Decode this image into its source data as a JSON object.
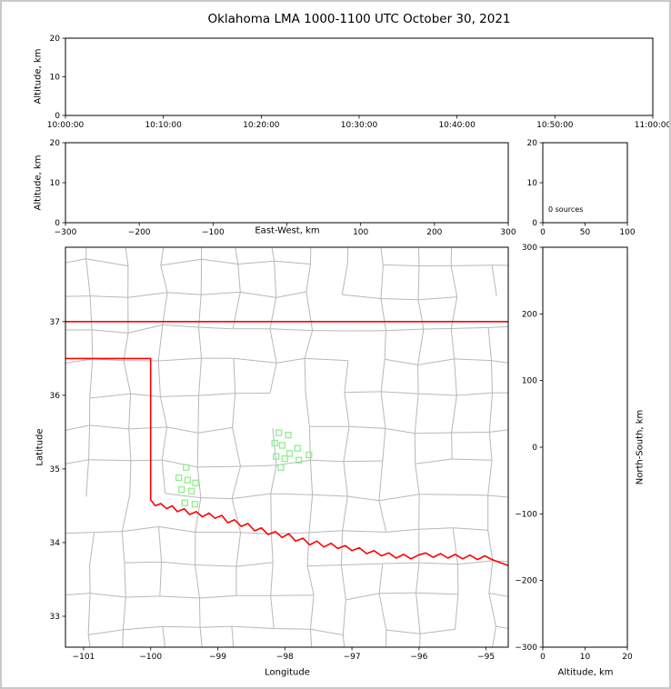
{
  "figure": {
    "title": "Oklahoma LMA 1000-1100 UTC October 30, 2021"
  },
  "colors": {
    "background": "#ffffff",
    "frame_border": "#c9c9c9",
    "axis": "#000000",
    "county_lines": "#b8b8b8",
    "state_border": "#ff0000",
    "station_marker": "#90ee90"
  },
  "chart_data": [
    {
      "id": "time_height",
      "type": "scatter",
      "ylabel": "Altitude, km",
      "xlim": [
        0,
        3600
      ],
      "ylim": [
        0,
        20
      ],
      "xticks": {
        "pos": [
          0,
          600,
          1200,
          1800,
          2400,
          3000,
          3600
        ],
        "labels": [
          "10:00:00",
          "10:10:00",
          "10:20:00",
          "10:30:00",
          "10:40:00",
          "10:50:00",
          "11:00:00"
        ]
      },
      "yticks": {
        "pos": [
          0,
          10,
          20
        ],
        "labels": [
          "0",
          "10",
          "20"
        ]
      },
      "points": []
    },
    {
      "id": "ew_height",
      "type": "scatter",
      "xlabel": "East-West, km",
      "ylabel": "Altitude, km",
      "xlim": [
        -300,
        300
      ],
      "ylim": [
        0,
        20
      ],
      "xticks": {
        "pos": [
          -300,
          -200,
          -100,
          0,
          100,
          200,
          300
        ],
        "labels": [
          "−300",
          "−200",
          "−100",
          "",
          "100",
          "200",
          "300"
        ]
      },
      "yticks": {
        "pos": [
          0,
          10,
          20
        ],
        "labels": [
          "0",
          "10",
          "20"
        ]
      },
      "points": []
    },
    {
      "id": "sources",
      "type": "histogram",
      "annotation": "0 sources",
      "xlim": [
        0,
        100
      ],
      "ylim": [
        0,
        20
      ],
      "xticks": {
        "pos": [
          0,
          50,
          100
        ],
        "labels": [
          "0",
          "50",
          "100"
        ]
      },
      "yticks": {
        "pos": [
          0,
          10,
          20
        ],
        "labels": [
          "0",
          "10",
          "20"
        ]
      },
      "points": []
    },
    {
      "id": "plan",
      "type": "scatter",
      "xlabel": "Longitude",
      "ylabel": "Latitude",
      "xlim": [
        -101.27,
        -94.67
      ],
      "ylim": [
        32.58,
        38.01
      ],
      "xticks": {
        "pos": [
          -101,
          -100,
          -99,
          -98,
          -97,
          -96,
          -95
        ],
        "labels": [
          "−101",
          "−100",
          "−99",
          "−98",
          "−97",
          "−96",
          "−95"
        ]
      },
      "yticks": {
        "pos": [
          33,
          34,
          35,
          36,
          37
        ],
        "labels": [
          "33",
          "34",
          "35",
          "36",
          "37"
        ]
      },
      "stations": [
        [
          -99.47,
          35.02
        ],
        [
          -99.58,
          34.88
        ],
        [
          -99.45,
          34.85
        ],
        [
          -99.33,
          34.81
        ],
        [
          -99.54,
          34.72
        ],
        [
          -99.39,
          34.7
        ],
        [
          -99.49,
          34.54
        ],
        [
          -99.34,
          34.52
        ],
        [
          -98.09,
          35.49
        ],
        [
          -97.95,
          35.46
        ],
        [
          -98.15,
          35.35
        ],
        [
          -98.04,
          35.32
        ],
        [
          -97.81,
          35.28
        ],
        [
          -97.93,
          35.21
        ],
        [
          -98.13,
          35.17
        ],
        [
          -98.0,
          35.14
        ],
        [
          -97.79,
          35.12
        ],
        [
          -97.64,
          35.19
        ],
        [
          -98.06,
          35.02
        ]
      ],
      "points": []
    },
    {
      "id": "ns_height",
      "type": "scatter",
      "xlabel": "Altitude, km",
      "ylabel": "North-South, km",
      "xlim": [
        0,
        20
      ],
      "ylim": [
        -300,
        300
      ],
      "xticks": {
        "pos": [
          0,
          10,
          20
        ],
        "labels": [
          "0",
          "10",
          "20"
        ]
      },
      "yticks": {
        "pos": [
          300,
          200,
          100,
          0,
          -100,
          -200,
          -300
        ],
        "labels": [
          "300",
          "200",
          "100",
          "0",
          "−100",
          "−200",
          "−300"
        ]
      },
      "points": []
    }
  ],
  "map": {
    "state_borders": [
      {
        "name": "kansas-oklahoma-lat37",
        "points": [
          [
            -101.27,
            37.0
          ],
          [
            -94.67,
            37.0
          ]
        ]
      },
      {
        "name": "panhandle-south-lat36p5",
        "points": [
          [
            -101.27,
            36.5
          ],
          [
            -100.0,
            36.5
          ]
        ]
      },
      {
        "name": "texas-oklahoma-lon100",
        "points": [
          [
            -100.0,
            36.5
          ],
          [
            -100.0,
            34.58
          ]
        ]
      },
      {
        "name": "red-river",
        "points": [
          [
            -100.0,
            34.58
          ],
          [
            -99.93,
            34.5
          ],
          [
            -99.85,
            34.53
          ],
          [
            -99.76,
            34.46
          ],
          [
            -99.68,
            34.5
          ],
          [
            -99.6,
            34.42
          ],
          [
            -99.5,
            34.46
          ],
          [
            -99.42,
            34.38
          ],
          [
            -99.32,
            34.42
          ],
          [
            -99.23,
            34.35
          ],
          [
            -99.13,
            34.4
          ],
          [
            -99.04,
            34.33
          ],
          [
            -98.94,
            34.37
          ],
          [
            -98.85,
            34.27
          ],
          [
            -98.75,
            34.31
          ],
          [
            -98.65,
            34.22
          ],
          [
            -98.55,
            34.26
          ],
          [
            -98.45,
            34.16
          ],
          [
            -98.35,
            34.2
          ],
          [
            -98.25,
            34.11
          ],
          [
            -98.14,
            34.15
          ],
          [
            -98.04,
            34.07
          ],
          [
            -97.94,
            34.12
          ],
          [
            -97.84,
            34.02
          ],
          [
            -97.73,
            34.06
          ],
          [
            -97.63,
            33.97
          ],
          [
            -97.52,
            34.02
          ],
          [
            -97.42,
            33.94
          ],
          [
            -97.31,
            33.99
          ],
          [
            -97.21,
            33.92
          ],
          [
            -97.1,
            33.96
          ],
          [
            -97.0,
            33.89
          ],
          [
            -96.89,
            33.93
          ],
          [
            -96.78,
            33.85
          ],
          [
            -96.67,
            33.89
          ],
          [
            -96.56,
            33.82
          ],
          [
            -96.45,
            33.86
          ],
          [
            -96.34,
            33.79
          ],
          [
            -96.23,
            33.84
          ],
          [
            -96.12,
            33.78
          ],
          [
            -96.01,
            33.83
          ],
          [
            -95.9,
            33.86
          ],
          [
            -95.79,
            33.8
          ],
          [
            -95.68,
            33.85
          ],
          [
            -95.57,
            33.79
          ],
          [
            -95.46,
            33.84
          ],
          [
            -95.35,
            33.78
          ],
          [
            -95.24,
            33.83
          ],
          [
            -95.13,
            33.77
          ],
          [
            -95.02,
            33.82
          ],
          [
            -94.91,
            33.77
          ],
          [
            -94.8,
            33.73
          ],
          [
            -94.67,
            33.69
          ]
        ]
      }
    ]
  }
}
